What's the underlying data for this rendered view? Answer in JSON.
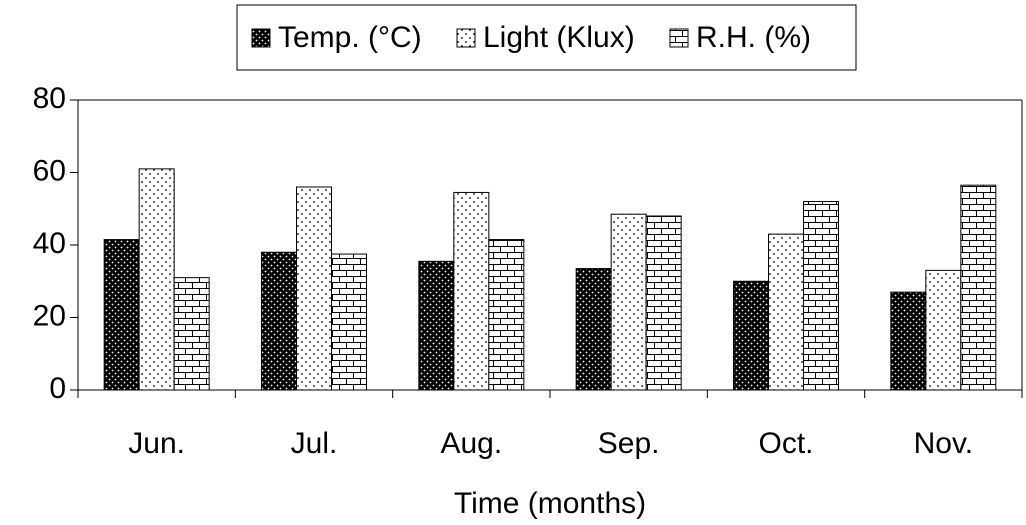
{
  "chart_data": {
    "type": "bar",
    "categories": [
      "Jun.",
      "Jul.",
      "Aug.",
      "Sep.",
      "Oct.",
      "Nov."
    ],
    "series": [
      {
        "name": "Temp. (°C)",
        "color": "#000000",
        "values": [
          41.5,
          38,
          35.5,
          33.5,
          30,
          27
        ]
      },
      {
        "name": "Light (Klux)",
        "color": "#000000",
        "values": [
          61,
          56,
          54.5,
          48.5,
          43,
          33
        ]
      },
      {
        "name": "R.H. (%)",
        "color": "#000000",
        "values": [
          31,
          37.5,
          41.5,
          48,
          52,
          56.5
        ]
      }
    ],
    "x_label": "Time (months)",
    "ylim": [
      0,
      80
    ],
    "yticks": [
      0,
      20,
      40,
      60,
      80
    ],
    "legend": "top"
  }
}
